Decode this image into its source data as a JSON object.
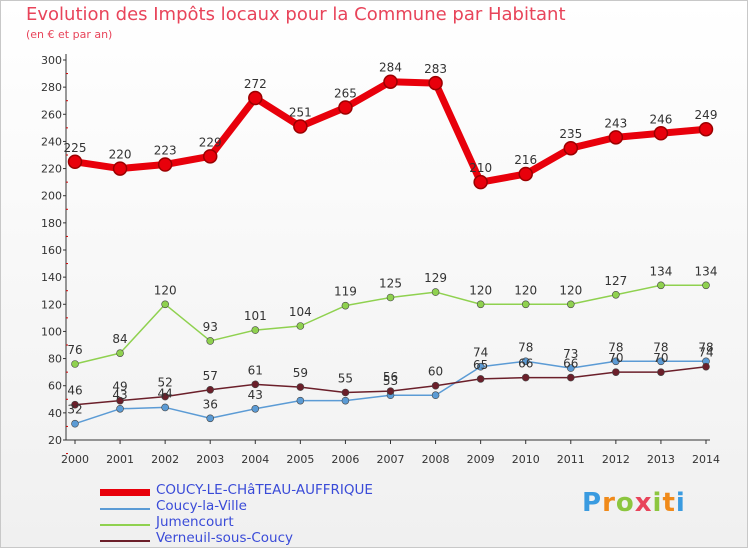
{
  "chart_data": {
    "type": "line",
    "title": "Evolution des Impôts locaux pour la Commune par Habitant",
    "subtitle": "(en € et par an)",
    "x": [
      "2000",
      "2001",
      "2002",
      "2003",
      "2004",
      "2005",
      "2006",
      "2007",
      "2008",
      "2009",
      "2010",
      "2011",
      "2012",
      "2013",
      "2014"
    ],
    "ylim": [
      20,
      300
    ],
    "yticks": [
      20,
      40,
      60,
      80,
      100,
      120,
      140,
      160,
      180,
      200,
      220,
      240,
      260,
      280,
      300
    ],
    "grid": false,
    "legend": "bottom-left",
    "series": [
      {
        "name": "COUCY-LE-CHâTEAU-AUFFRIQUE",
        "color": "#e8000b",
        "values": [
          225,
          220,
          223,
          229,
          272,
          251,
          265,
          284,
          283,
          210,
          216,
          235,
          243,
          246,
          249
        ],
        "labels": [
          "225",
          "220",
          "223",
          "229",
          "272",
          "251",
          "265",
          "284",
          "283",
          "210",
          "216",
          "235",
          "243",
          "246",
          "249"
        ]
      },
      {
        "name": "Coucy-la-Ville",
        "color": "#5b9bd5",
        "values": [
          32,
          43,
          44,
          36,
          43,
          49,
          49,
          53,
          53,
          74,
          78,
          73,
          78,
          78,
          78
        ],
        "labels": [
          "32",
          "43",
          "44",
          "36",
          "43",
          "",
          "",
          "53",
          "",
          "74",
          "78",
          "73",
          "78",
          "78",
          "78"
        ]
      },
      {
        "name": "Jumencourt",
        "color": "#8fd14f",
        "values": [
          76,
          84,
          120,
          93,
          101,
          104,
          119,
          125,
          129,
          120,
          120,
          120,
          127,
          134,
          134
        ],
        "labels": [
          "76",
          "84",
          "120",
          "93",
          "101",
          "104",
          "119",
          "125",
          "129",
          "120",
          "120",
          "120",
          "127",
          "134",
          "134"
        ]
      },
      {
        "name": "Verneuil-sous-Coucy",
        "color": "#6b1f2a",
        "values": [
          46,
          49,
          52,
          57,
          61,
          59,
          55,
          56,
          60,
          65,
          66,
          66,
          70,
          70,
          74
        ],
        "labels": [
          "46",
          "49",
          "52",
          "57",
          "61",
          "59",
          "55",
          "56",
          "60",
          "65",
          "66",
          "66",
          "70",
          "70",
          "74"
        ]
      }
    ]
  },
  "logo": {
    "letters": [
      "P",
      "r",
      "o",
      "x",
      "i",
      "t",
      "i"
    ],
    "colors": [
      "#3a9be0",
      "#f08a1a",
      "#8cc63f",
      "#e8445a",
      "#8cc63f",
      "#f08a1a",
      "#3a9be0"
    ]
  }
}
